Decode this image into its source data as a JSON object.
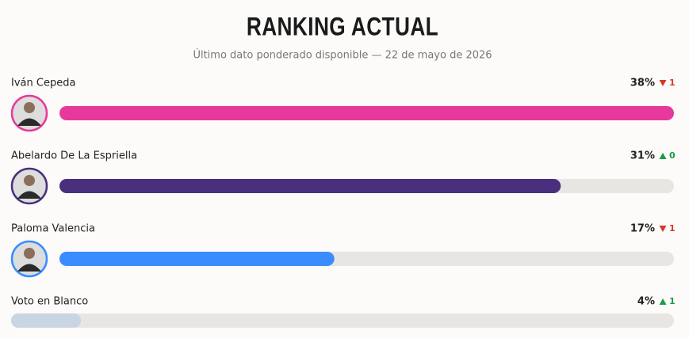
{
  "chart_data": {
    "type": "bar",
    "title": "RANKING ACTUAL",
    "subtitle": "Último dato ponderado disponible — 22 de mayo de 2026",
    "categories": [
      "Iván Cepeda",
      "Abelardo De La Espriella",
      "Paloma Valencia",
      "Voto en Blanco"
    ],
    "values": [
      38,
      31,
      17,
      4
    ],
    "value_labels": [
      "38%",
      "31%",
      "17%",
      "4%"
    ],
    "colors": [
      "#e6399b",
      "#4a2f7e",
      "#3a8cff",
      "#c9d5e3"
    ],
    "avatars": [
      true,
      true,
      true,
      false
    ],
    "changes": [
      1,
      0,
      1,
      1
    ],
    "change_directions": [
      "down",
      "up",
      "down",
      "up"
    ],
    "up_color": "#1a9a4a",
    "down_color": "#d9362b"
  }
}
